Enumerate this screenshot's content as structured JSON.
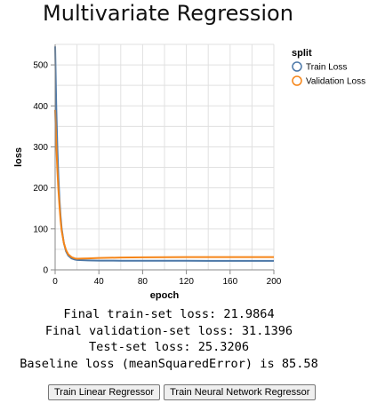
{
  "page": {
    "title": "Multivariate Regression"
  },
  "chart_data": {
    "type": "line",
    "xlabel": "epoch",
    "ylabel": "loss",
    "xlim": [
      0,
      200
    ],
    "ylim": [
      0,
      550
    ],
    "x_ticks": [
      0,
      40,
      80,
      120,
      160,
      200
    ],
    "y_ticks": [
      0,
      100,
      200,
      300,
      400,
      500
    ],
    "grid": true,
    "legend": {
      "title": "split",
      "placement": "right"
    },
    "series": [
      {
        "name": "Train Loss",
        "color": "#4c78a8",
        "x": [
          0,
          1,
          2,
          3,
          4,
          5,
          6,
          8,
          10,
          12,
          15,
          18,
          20,
          25,
          30,
          40,
          60,
          80,
          100,
          120,
          140,
          160,
          180,
          200
        ],
        "y": [
          545,
          400,
          300,
          225,
          170,
          130,
          100,
          65,
          45,
          35,
          28,
          25,
          24,
          23.5,
          23,
          22.5,
          22.3,
          22.2,
          22.1,
          22.1,
          22.0,
          22.0,
          22.0,
          22.0
        ]
      },
      {
        "name": "Validation Loss",
        "color": "#f58518",
        "x": [
          0,
          1,
          2,
          3,
          4,
          5,
          6,
          8,
          10,
          12,
          15,
          18,
          20,
          25,
          30,
          40,
          60,
          80,
          100,
          120,
          140,
          160,
          180,
          200
        ],
        "y": [
          390,
          310,
          245,
          195,
          155,
          120,
          95,
          65,
          48,
          38,
          31,
          28,
          27,
          27.5,
          28,
          29,
          30,
          30.5,
          30.8,
          31,
          31,
          31.1,
          31.1,
          31.1
        ]
      }
    ]
  },
  "stats": {
    "train": "Final train-set loss: 21.9864",
    "validation": "Final validation-set loss: 31.1396",
    "test": "Test-set loss: 25.3206",
    "baseline": "Baseline loss (meanSquaredError) is 85.58"
  },
  "buttons": {
    "linear": "Train Linear Regressor",
    "neural": "Train Neural Network Regressor"
  }
}
